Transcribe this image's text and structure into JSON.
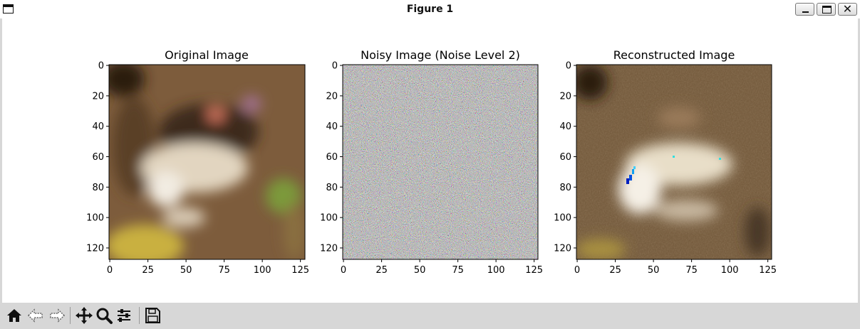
{
  "window": {
    "title": "Figure 1",
    "controls": [
      "minimize",
      "maximize",
      "close"
    ],
    "close_glyph": "✕"
  },
  "figure": {
    "panels": [
      {
        "title": "Original Image",
        "image": "frog-original",
        "xticks": [
          "0",
          "25",
          "50",
          "75",
          "100",
          "125"
        ],
        "yticks": [
          "0",
          "20",
          "40",
          "60",
          "80",
          "100",
          "120"
        ]
      },
      {
        "title": "Noisy Image (Noise Level 2)",
        "image": "frog-noisy",
        "xticks": [
          "0",
          "25",
          "50",
          "75",
          "100",
          "125"
        ],
        "yticks": [
          "0",
          "20",
          "40",
          "60",
          "80",
          "100",
          "120"
        ]
      },
      {
        "title": "Reconstructed Image",
        "image": "frog-reconstructed",
        "xticks": [
          "0",
          "25",
          "50",
          "75",
          "100",
          "125"
        ],
        "yticks": [
          "0",
          "20",
          "40",
          "60",
          "80",
          "100",
          "120"
        ]
      }
    ]
  },
  "toolbar": {
    "buttons": [
      {
        "name": "home",
        "icon": "home-icon"
      },
      {
        "name": "back",
        "icon": "back-arrow-icon"
      },
      {
        "name": "forward",
        "icon": "forward-arrow-icon"
      },
      {
        "name": "pan",
        "icon": "move-icon"
      },
      {
        "name": "zoom",
        "icon": "zoom-icon"
      },
      {
        "name": "configure-subplots",
        "icon": "sliders-icon"
      },
      {
        "name": "save",
        "icon": "save-icon"
      }
    ]
  },
  "colors": {
    "frog_background": "#7a5a3a",
    "frog_body": "#e8dcc8",
    "leaf": "#7c9a3a",
    "ground_yellow": "#c9b040"
  }
}
